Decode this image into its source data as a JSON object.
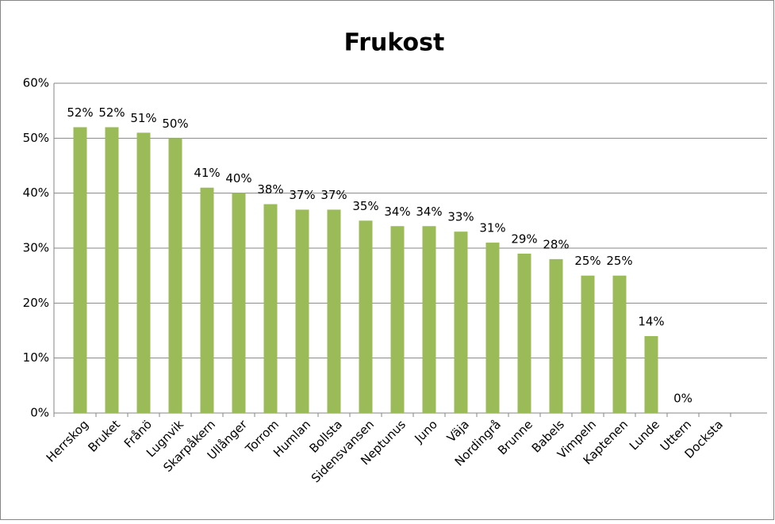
{
  "chart_data": {
    "type": "bar",
    "title": "Frukost",
    "categories": [
      "Herrskog",
      "Bruket",
      "Frånö",
      "Lugnvik",
      "Skarpåkern",
      "Ullånger",
      "Torrom",
      "Humlan",
      "Bollsta",
      "Sidensvansen",
      "Neptunus",
      "Juno",
      "Väja",
      "Nordingrå",
      "Brunne",
      "Babels",
      "Vimpeln",
      "Kaptenen",
      "Lunde",
      "Uttern",
      "Docksta"
    ],
    "values": [
      52,
      52,
      51,
      50,
      41,
      40,
      38,
      37,
      37,
      35,
      34,
      34,
      33,
      31,
      29,
      28,
      25,
      25,
      14,
      0,
      null
    ],
    "value_labels": [
      "52%",
      "52%",
      "51%",
      "50%",
      "41%",
      "40%",
      "38%",
      "37%",
      "37%",
      "35%",
      "34%",
      "34%",
      "33%",
      "31%",
      "29%",
      "28%",
      "25%",
      "25%",
      "14%",
      "0%",
      null
    ],
    "color": "#9bbb59",
    "ylim": [
      0,
      60
    ],
    "yticks": [
      {
        "value": 0,
        "label": "0%"
      },
      {
        "value": 10,
        "label": "10%"
      },
      {
        "value": 20,
        "label": "20%"
      },
      {
        "value": 30,
        "label": "30%"
      },
      {
        "value": 40,
        "label": "40%"
      },
      {
        "value": 50,
        "label": "50%"
      },
      {
        "value": 60,
        "label": "60%"
      }
    ],
    "grid": true
  }
}
